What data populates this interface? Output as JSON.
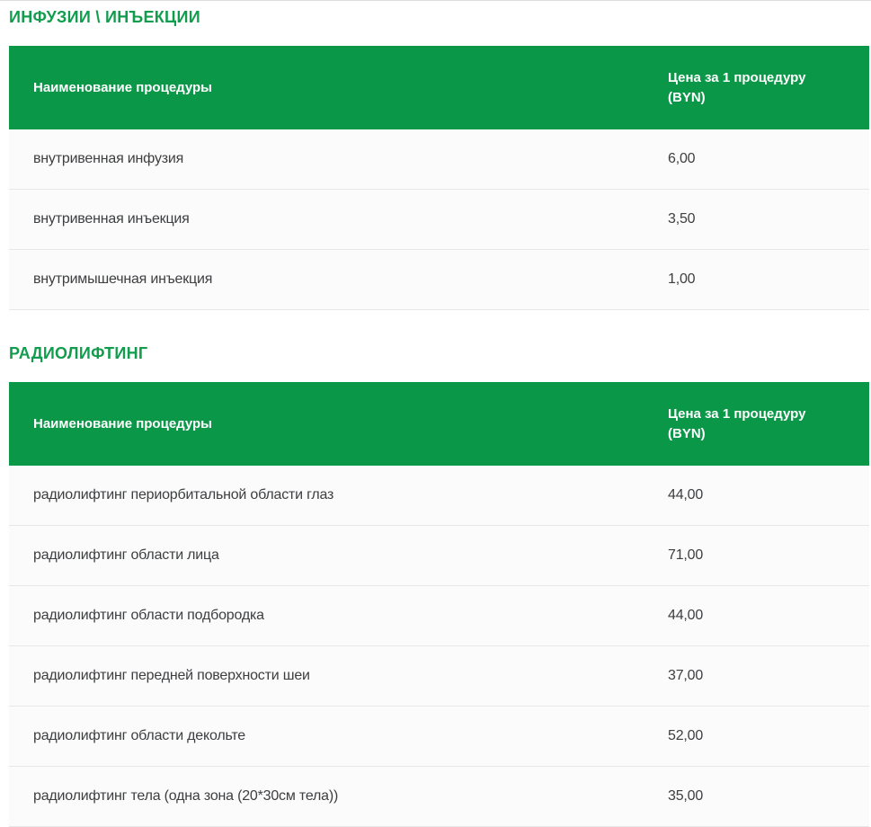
{
  "theme": {
    "accent_green": "#129c4d",
    "table_header_bg": "#0a9848",
    "table_header_text": "#ffffff",
    "row_bg": "#fbfbfb",
    "row_border": "#e7e7e7",
    "row_text": "#3d3e40",
    "top_rule": "#dddddd"
  },
  "sections": [
    {
      "title": "ИНФУЗИИ \\ ИНЪЕКЦИИ",
      "columns": {
        "name": "Наименование процедуры",
        "price": "Цена за 1 процедуру (BYN)"
      },
      "rows": [
        {
          "name": "внутривенная инфузия",
          "price": "6,00"
        },
        {
          "name": "внутривенная инъекция",
          "price": "3,50"
        },
        {
          "name": "внутримышечная инъекция",
          "price": "1,00"
        }
      ]
    },
    {
      "title": "РАДИОЛИФТИНГ",
      "columns": {
        "name": "Наименование процедуры",
        "price": "Цена за 1 процедуру (BYN)"
      },
      "rows": [
        {
          "name": "радиолифтинг периорбитальной области глаз",
          "price": "44,00"
        },
        {
          "name": "радиолифтинг области лица",
          "price": "71,00"
        },
        {
          "name": "радиолифтинг области подбородка",
          "price": "44,00"
        },
        {
          "name": "радиолифтинг передней поверхности шеи",
          "price": "37,00"
        },
        {
          "name": "радиолифтинг области декольте",
          "price": "52,00"
        },
        {
          "name": "радиолифтинг тела (одна зона (20*30см тела))",
          "price": "35,00"
        }
      ]
    }
  ]
}
